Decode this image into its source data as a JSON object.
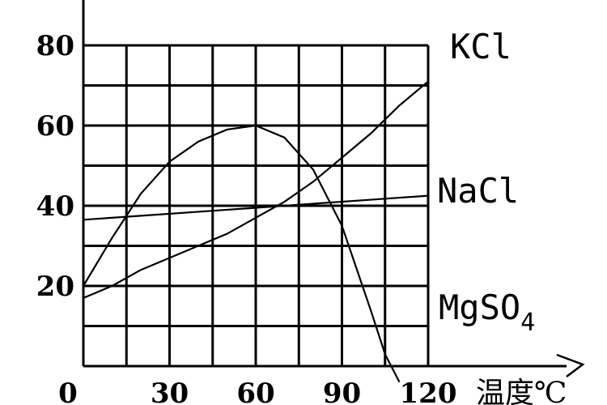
{
  "chart_data": {
    "type": "line",
    "xlabel": "温度℃",
    "ylabel": "",
    "xlim": [
      0,
      120
    ],
    "ylim": [
      0,
      90
    ],
    "x_ticks": [
      "0",
      "30",
      "60",
      "90",
      "120"
    ],
    "y_ticks": [
      "20",
      "40",
      "60",
      "80"
    ],
    "grid": true,
    "series": [
      {
        "name": "KCl",
        "x": [
          0,
          10,
          20,
          30,
          40,
          50,
          60,
          70,
          80,
          90,
          100,
          110,
          120
        ],
        "y": [
          17,
          20,
          24,
          27,
          30,
          33,
          37,
          41,
          46,
          52,
          58,
          65,
          71
        ]
      },
      {
        "name": "NaCl",
        "x": [
          0,
          20,
          40,
          60,
          80,
          100,
          120
        ],
        "y": [
          36.5,
          37.5,
          38.5,
          39.5,
          40.5,
          41.5,
          42.5
        ]
      },
      {
        "name": "MgSO4",
        "x": [
          0,
          10,
          20,
          30,
          40,
          50,
          60,
          70,
          80,
          90,
          100,
          105,
          110
        ],
        "y": [
          20,
          32,
          43,
          51,
          56,
          59,
          60,
          57,
          49,
          35,
          14,
          3,
          -4
        ]
      }
    ],
    "labels": {
      "kcl": "KCl",
      "nacl": "NaCl",
      "mgso4_main": "MgSO",
      "mgso4_sub": "4"
    }
  }
}
